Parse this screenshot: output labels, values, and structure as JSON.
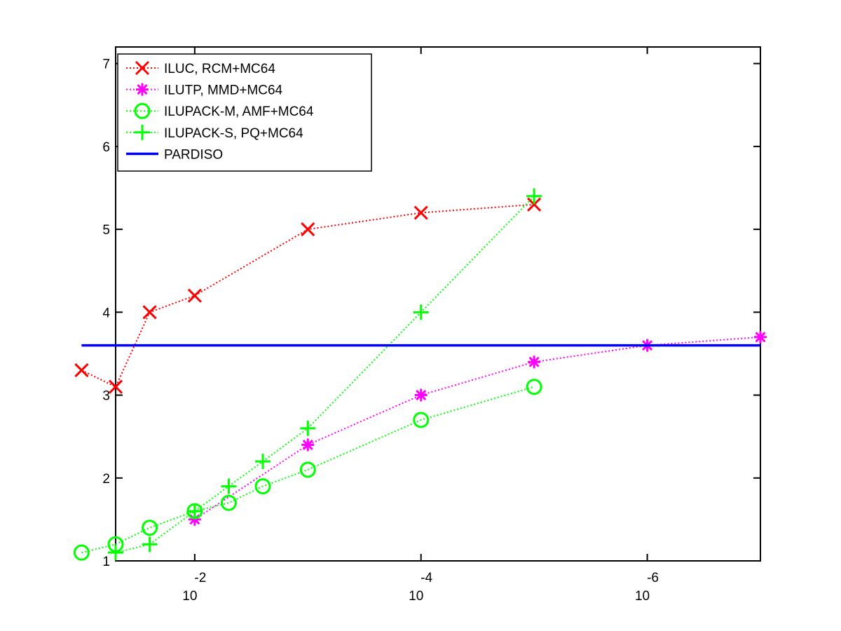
{
  "chart_data": {
    "type": "line",
    "title": "",
    "xlabel": "",
    "ylabel": "",
    "x_scale": "log",
    "x_axis_reversed": true,
    "xlim": [
      0.05,
      1e-07
    ],
    "ylim": [
      1,
      7.2
    ],
    "x_ticks": [
      {
        "value": 0.01,
        "base": "10",
        "exponent": "-2"
      },
      {
        "value": 0.0001,
        "base": "10",
        "exponent": "-4"
      },
      {
        "value": 1e-06,
        "base": "10",
        "exponent": "-6"
      }
    ],
    "y_ticks": [
      "1",
      "2",
      "3",
      "4",
      "5",
      "6",
      "7"
    ],
    "legend_position": "top-left",
    "grid": false,
    "series": [
      {
        "name": "ILUC, RCM+MC64",
        "color": "#ff0000",
        "marker": "x",
        "line_style": "dotted",
        "x": [
          0.1,
          0.05,
          0.025,
          0.01,
          0.001,
          0.0001,
          1e-05
        ],
        "y": [
          3.3,
          3.1,
          4.0,
          4.2,
          5.0,
          5.2,
          5.3
        ]
      },
      {
        "name": "ILUTP, MMD+MC64",
        "color": "#ff00ff",
        "marker": "asterisk",
        "line_style": "dotted",
        "x": [
          0.01,
          0.001,
          0.0001,
          1e-05,
          1e-06,
          1e-07
        ],
        "y": [
          1.5,
          2.4,
          3.0,
          3.4,
          3.6,
          3.7
        ]
      },
      {
        "name": "ILUPACK-M, AMF+MC64",
        "color": "#00ff00",
        "marker": "circle",
        "line_style": "dotted",
        "x": [
          0.1,
          0.05,
          0.025,
          0.01,
          0.005,
          0.0025,
          0.001,
          0.0001,
          1e-05
        ],
        "y": [
          1.1,
          1.2,
          1.4,
          1.6,
          1.7,
          1.9,
          2.1,
          2.7,
          3.1
        ]
      },
      {
        "name": "ILUPACK-S, PQ+MC64",
        "color": "#00ff00",
        "marker": "plus",
        "line_style": "dotted",
        "x": [
          0.05,
          0.025,
          0.01,
          0.005,
          0.0025,
          0.001,
          0.0001,
          1e-05
        ],
        "y": [
          1.1,
          1.2,
          1.6,
          1.9,
          2.2,
          2.6,
          4.0,
          5.4
        ]
      },
      {
        "name": "PARDISO",
        "color": "#0000ff",
        "marker": "none",
        "line_style": "solid",
        "x": [
          0.1,
          1e-07
        ],
        "y": [
          3.6,
          3.6
        ]
      }
    ]
  }
}
